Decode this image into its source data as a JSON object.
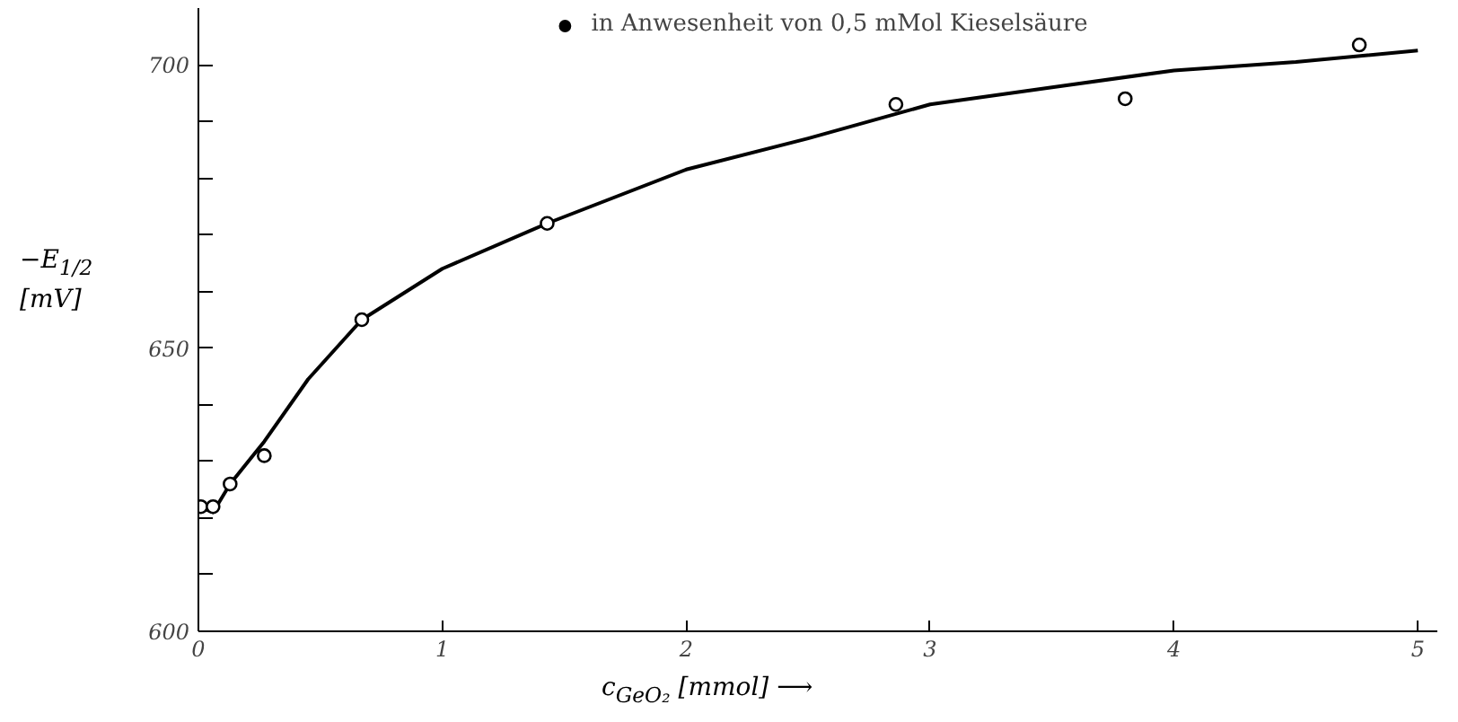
{
  "chart_data": {
    "type": "scatter",
    "xlabel": "c$_{GeO₂}$ [mmol] ⟶",
    "ylabel": "−E$_{1/2}$ [mV]",
    "xlim": [
      0,
      5.08
    ],
    "ylim": [
      600,
      710
    ],
    "xticks": [
      0,
      1,
      2,
      3,
      4,
      5
    ],
    "yticks": [
      600,
      {
        "value": 610,
        "label": null
      },
      {
        "value": 620,
        "label": null
      },
      {
        "value": 630,
        "label": null
      },
      {
        "value": 640,
        "label": null
      },
      650,
      {
        "value": 660,
        "label": null
      },
      {
        "value": 670,
        "label": null
      },
      {
        "value": 680,
        "label": null
      },
      {
        "value": 690,
        "label": null
      },
      700
    ],
    "grid": false,
    "legend": "top",
    "marker": "circle",
    "series": [
      {
        "type": "line",
        "color": "#000000",
        "marker": "none",
        "x": [
          0,
          0.06,
          0.13,
          0.27,
          0.45,
          0.67,
          1.0,
          1.43,
          2.0,
          2.5,
          3.0,
          3.5,
          4.0,
          4.5,
          5.0
        ],
        "values": [
          622,
          621,
          626,
          633.5,
          644.5,
          655,
          664,
          672,
          681.5,
          687,
          693,
          696,
          699,
          700.5,
          702.5
        ]
      },
      {
        "color": "#000000",
        "x": [
          0.01,
          0.06,
          0.13,
          0.27,
          0.67,
          1.43,
          2.86,
          3.8,
          4.76
        ],
        "values": [
          622,
          622,
          626,
          631,
          655,
          672,
          693,
          694,
          703.5
        ]
      },
      {
        "name": "in Anwesenheit von 0,5 mMol Kieselsäure",
        "color": "#000000"
      }
    ]
  }
}
